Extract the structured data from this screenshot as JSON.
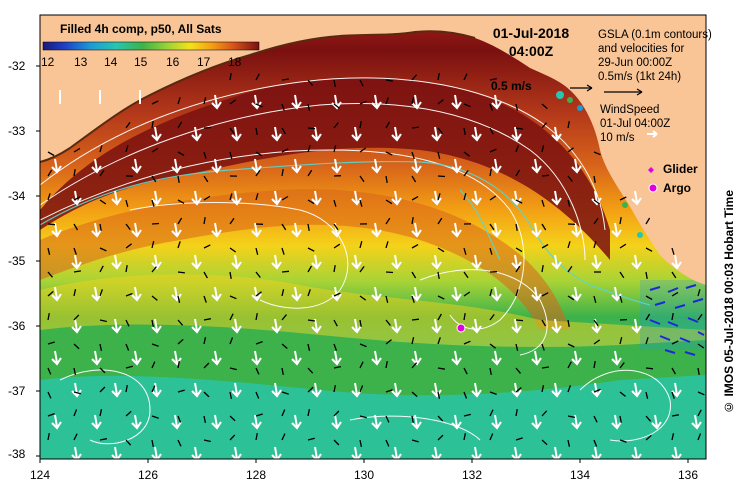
{
  "header": {
    "product_title": "Filled 4h comp, p50, All Sats",
    "date": "01-Jul-2018",
    "time": "04:00Z"
  },
  "colorbar": {
    "labels": [
      "12",
      "13",
      "14",
      "15",
      "16",
      "17",
      "18"
    ],
    "colors": [
      "#1a1a7a",
      "#1e40c8",
      "#1c9ad6",
      "#27c6b0",
      "#3db24a",
      "#9fd336",
      "#f4e21a",
      "#f3a014",
      "#d8541a",
      "#a01e18",
      "#7a1010"
    ]
  },
  "legend": {
    "gsla_line1": "GSLA (0.1m contours)",
    "gsla_line2": "and velocities for",
    "gsla_line3": "29-Jun 00:00Z",
    "gsla_line4": "0.5m/s (1kt 24h)",
    "wind_line1": "WindSpeed",
    "wind_line2": "01-Jul 04:00Z",
    "wind_line3": "10 m/s",
    "glider_label": "Glider",
    "argo_label": "Argo",
    "glider_color": "#e000e0",
    "argo_color": "#e000e0"
  },
  "map_annotations": {
    "velocity_scale_label": "0.5 m/s"
  },
  "axes": {
    "y_ticks": [
      "-32",
      "-33",
      "-34",
      "-35",
      "-36",
      "-37",
      "-38"
    ],
    "x_ticks": [
      "124",
      "126",
      "128",
      "130",
      "132",
      "134",
      "136"
    ]
  },
  "credit": "© IMOS 05-Jul-2018 00:03 Hobart Time",
  "colors": {
    "land": "#f9c596",
    "frame": "#000000"
  }
}
